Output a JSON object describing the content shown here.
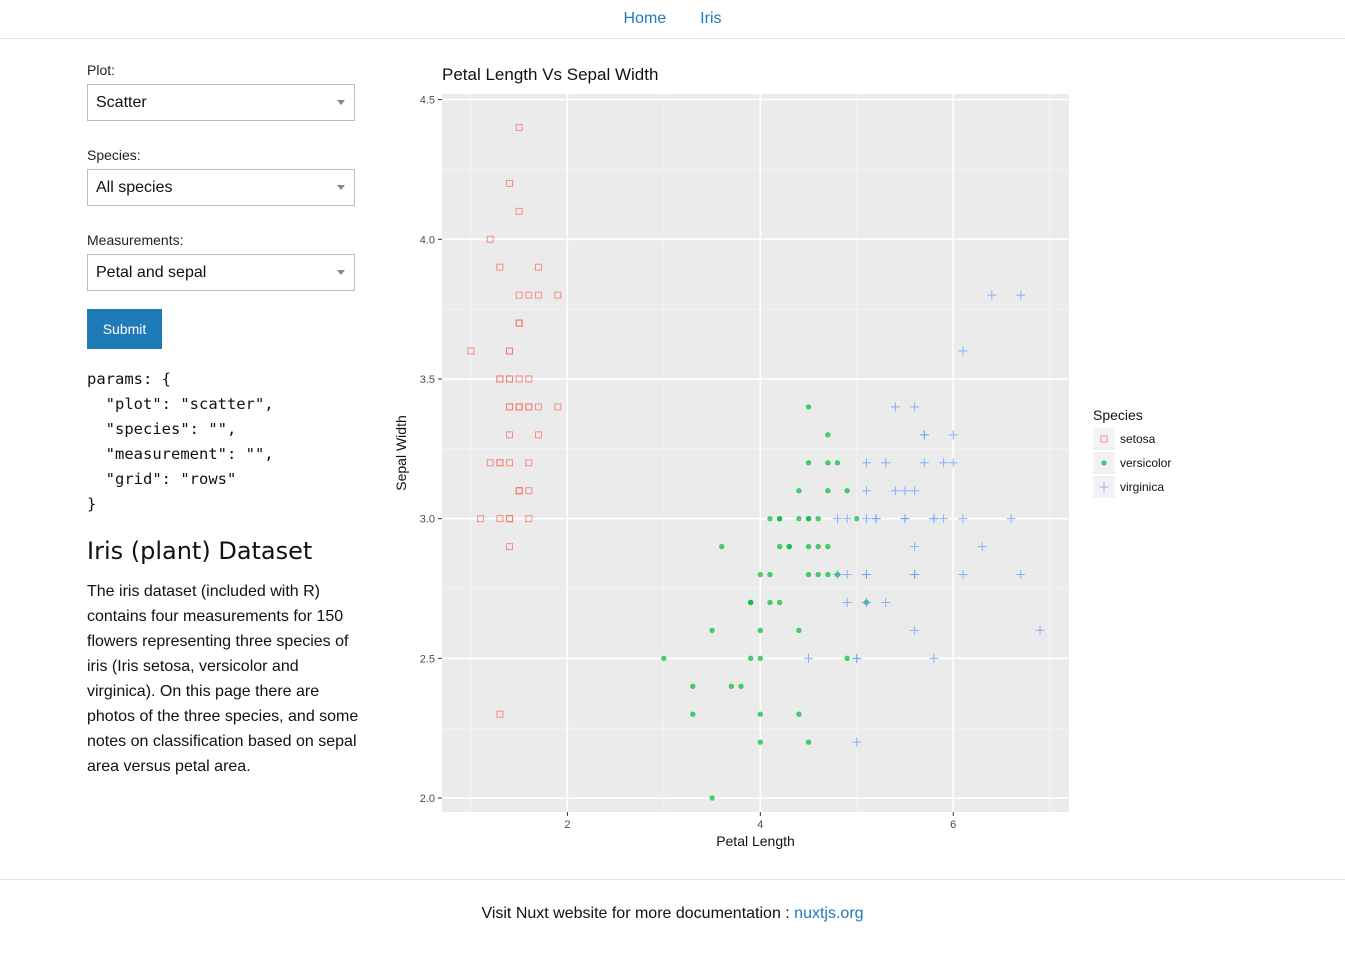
{
  "nav": {
    "home": "Home",
    "iris": "Iris"
  },
  "form": {
    "plot_label": "Plot:",
    "plot_value": "Scatter",
    "species_label": "Species:",
    "species_value": "All species",
    "measurements_label": "Measurements:",
    "measurements_value": "Petal and sepal",
    "submit_label": "Submit"
  },
  "params_text": "params: {\n  \"plot\": \"scatter\",\n  \"species\": \"\",\n  \"measurement\": \"\",\n  \"grid\": \"rows\"\n}",
  "dataset": {
    "title": "Iris (plant) Dataset",
    "description": "The iris dataset (included with R) contains four measurements for 150 flowers representing three species of iris (Iris setosa, versicolor and virginica). On this page there are photos of the three species, and some notes on classification based on sepal area versus petal area."
  },
  "footer": {
    "text": "Visit Nuxt website for more documentation : ",
    "link": "nuxtjs.org"
  },
  "colors": {
    "setosa": "#f8766d",
    "versicolor": "#00ba38",
    "virginica": "#619cff",
    "panel": "#ebebeb",
    "link": "#1f7ab8"
  },
  "chart_data": {
    "type": "scatter",
    "title": "Petal Length Vs Sepal Width",
    "xlabel": "Petal Length",
    "ylabel": "Sepal Width",
    "xlim": [
      0.7,
      7.2
    ],
    "ylim": [
      1.95,
      4.52
    ],
    "xticks": [
      2,
      4,
      6
    ],
    "yticks": [
      2.0,
      2.5,
      3.0,
      3.5,
      4.0,
      4.5
    ],
    "ytick_labels": [
      "2.0",
      "2.5",
      "3.0",
      "3.5",
      "4.0",
      "4.5"
    ],
    "legend_title": "Species",
    "series": [
      {
        "name": "setosa",
        "marker": "square",
        "points": [
          [
            1.4,
            3.5
          ],
          [
            1.4,
            3.0
          ],
          [
            1.3,
            3.2
          ],
          [
            1.5,
            3.1
          ],
          [
            1.4,
            3.6
          ],
          [
            1.7,
            3.9
          ],
          [
            1.4,
            3.4
          ],
          [
            1.5,
            3.4
          ],
          [
            1.4,
            2.9
          ],
          [
            1.5,
            3.1
          ],
          [
            1.5,
            3.7
          ],
          [
            1.6,
            3.4
          ],
          [
            1.4,
            3.0
          ],
          [
            1.1,
            3.0
          ],
          [
            1.2,
            4.0
          ],
          [
            1.5,
            4.4
          ],
          [
            1.3,
            3.9
          ],
          [
            1.4,
            3.5
          ],
          [
            1.7,
            3.8
          ],
          [
            1.5,
            3.8
          ],
          [
            1.7,
            3.4
          ],
          [
            1.5,
            3.7
          ],
          [
            1.0,
            3.6
          ],
          [
            1.7,
            3.3
          ],
          [
            1.9,
            3.4
          ],
          [
            1.6,
            3.0
          ],
          [
            1.6,
            3.4
          ],
          [
            1.5,
            3.5
          ],
          [
            1.4,
            3.4
          ],
          [
            1.6,
            3.2
          ],
          [
            1.6,
            3.1
          ],
          [
            1.5,
            3.4
          ],
          [
            1.5,
            4.1
          ],
          [
            1.4,
            4.2
          ],
          [
            1.5,
            3.1
          ],
          [
            1.2,
            3.2
          ],
          [
            1.3,
            3.5
          ],
          [
            1.4,
            3.6
          ],
          [
            1.3,
            3.0
          ],
          [
            1.5,
            3.4
          ],
          [
            1.3,
            3.5
          ],
          [
            1.3,
            2.3
          ],
          [
            1.3,
            3.2
          ],
          [
            1.6,
            3.5
          ],
          [
            1.9,
            3.8
          ],
          [
            1.4,
            3.0
          ],
          [
            1.6,
            3.8
          ],
          [
            1.4,
            3.2
          ],
          [
            1.5,
            3.7
          ],
          [
            1.4,
            3.3
          ]
        ]
      },
      {
        "name": "versicolor",
        "marker": "circle",
        "points": [
          [
            4.7,
            3.2
          ],
          [
            4.5,
            3.2
          ],
          [
            4.9,
            3.1
          ],
          [
            4.0,
            2.3
          ],
          [
            4.6,
            2.8
          ],
          [
            4.5,
            2.8
          ],
          [
            4.7,
            3.3
          ],
          [
            3.3,
            2.4
          ],
          [
            4.6,
            2.9
          ],
          [
            3.9,
            2.7
          ],
          [
            3.5,
            2.0
          ],
          [
            4.2,
            3.0
          ],
          [
            4.0,
            2.2
          ],
          [
            4.7,
            2.9
          ],
          [
            3.6,
            2.9
          ],
          [
            4.4,
            3.1
          ],
          [
            4.5,
            3.0
          ],
          [
            4.1,
            2.7
          ],
          [
            4.5,
            2.2
          ],
          [
            3.9,
            2.5
          ],
          [
            4.8,
            3.2
          ],
          [
            4.0,
            2.8
          ],
          [
            4.9,
            2.5
          ],
          [
            4.7,
            2.8
          ],
          [
            4.3,
            2.9
          ],
          [
            4.4,
            3.0
          ],
          [
            4.8,
            2.8
          ],
          [
            5.0,
            3.0
          ],
          [
            4.5,
            2.9
          ],
          [
            3.5,
            2.6
          ],
          [
            3.8,
            2.4
          ],
          [
            3.7,
            2.4
          ],
          [
            3.9,
            2.7
          ],
          [
            5.1,
            2.7
          ],
          [
            4.5,
            3.0
          ],
          [
            4.5,
            3.4
          ],
          [
            4.7,
            3.1
          ],
          [
            4.4,
            2.3
          ],
          [
            4.1,
            3.0
          ],
          [
            4.0,
            2.5
          ],
          [
            4.4,
            2.6
          ],
          [
            4.6,
            3.0
          ],
          [
            4.0,
            2.6
          ],
          [
            3.3,
            2.3
          ],
          [
            4.2,
            2.7
          ],
          [
            4.2,
            3.0
          ],
          [
            4.2,
            2.9
          ],
          [
            4.3,
            2.9
          ],
          [
            3.0,
            2.5
          ],
          [
            4.1,
            2.8
          ]
        ]
      },
      {
        "name": "virginica",
        "marker": "plus",
        "points": [
          [
            6.0,
            3.3
          ],
          [
            5.1,
            2.7
          ],
          [
            5.9,
            3.0
          ],
          [
            5.6,
            2.9
          ],
          [
            5.8,
            3.0
          ],
          [
            6.6,
            3.0
          ],
          [
            4.5,
            2.5
          ],
          [
            6.3,
            2.9
          ],
          [
            5.8,
            2.5
          ],
          [
            6.1,
            3.6
          ],
          [
            5.1,
            3.2
          ],
          [
            5.3,
            2.7
          ],
          [
            5.5,
            3.0
          ],
          [
            5.0,
            2.5
          ],
          [
            5.1,
            2.8
          ],
          [
            5.3,
            3.2
          ],
          [
            5.5,
            3.0
          ],
          [
            6.7,
            3.8
          ],
          [
            6.9,
            2.6
          ],
          [
            5.0,
            2.2
          ],
          [
            5.7,
            3.2
          ],
          [
            4.9,
            2.8
          ],
          [
            6.7,
            2.8
          ],
          [
            4.9,
            2.7
          ],
          [
            5.7,
            3.3
          ],
          [
            6.0,
            3.2
          ],
          [
            4.8,
            2.8
          ],
          [
            4.9,
            3.0
          ],
          [
            5.6,
            2.8
          ],
          [
            5.8,
            3.0
          ],
          [
            6.1,
            2.8
          ],
          [
            6.4,
            3.8
          ],
          [
            5.6,
            2.8
          ],
          [
            5.1,
            2.8
          ],
          [
            5.6,
            2.6
          ],
          [
            6.1,
            3.0
          ],
          [
            5.6,
            3.4
          ],
          [
            5.5,
            3.1
          ],
          [
            4.8,
            3.0
          ],
          [
            5.4,
            3.1
          ],
          [
            5.6,
            3.1
          ],
          [
            5.1,
            3.1
          ],
          [
            5.1,
            2.7
          ],
          [
            5.9,
            3.2
          ],
          [
            5.7,
            3.3
          ],
          [
            5.2,
            3.0
          ],
          [
            5.0,
            2.5
          ],
          [
            5.2,
            3.0
          ],
          [
            5.4,
            3.4
          ],
          [
            5.1,
            3.0
          ]
        ]
      }
    ]
  }
}
